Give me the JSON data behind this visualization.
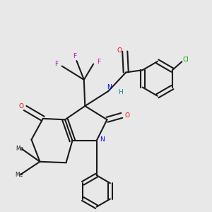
{
  "background_color": "#e8e8e8",
  "figsize": [
    3.0,
    3.0
  ],
  "dpi": 100,
  "atom_colors": {
    "O": "#ff0000",
    "N": "#0000ff",
    "F": "#cc00cc",
    "Cl": "#00aa00",
    "C": "#1a1a1a",
    "H": "#008888"
  }
}
